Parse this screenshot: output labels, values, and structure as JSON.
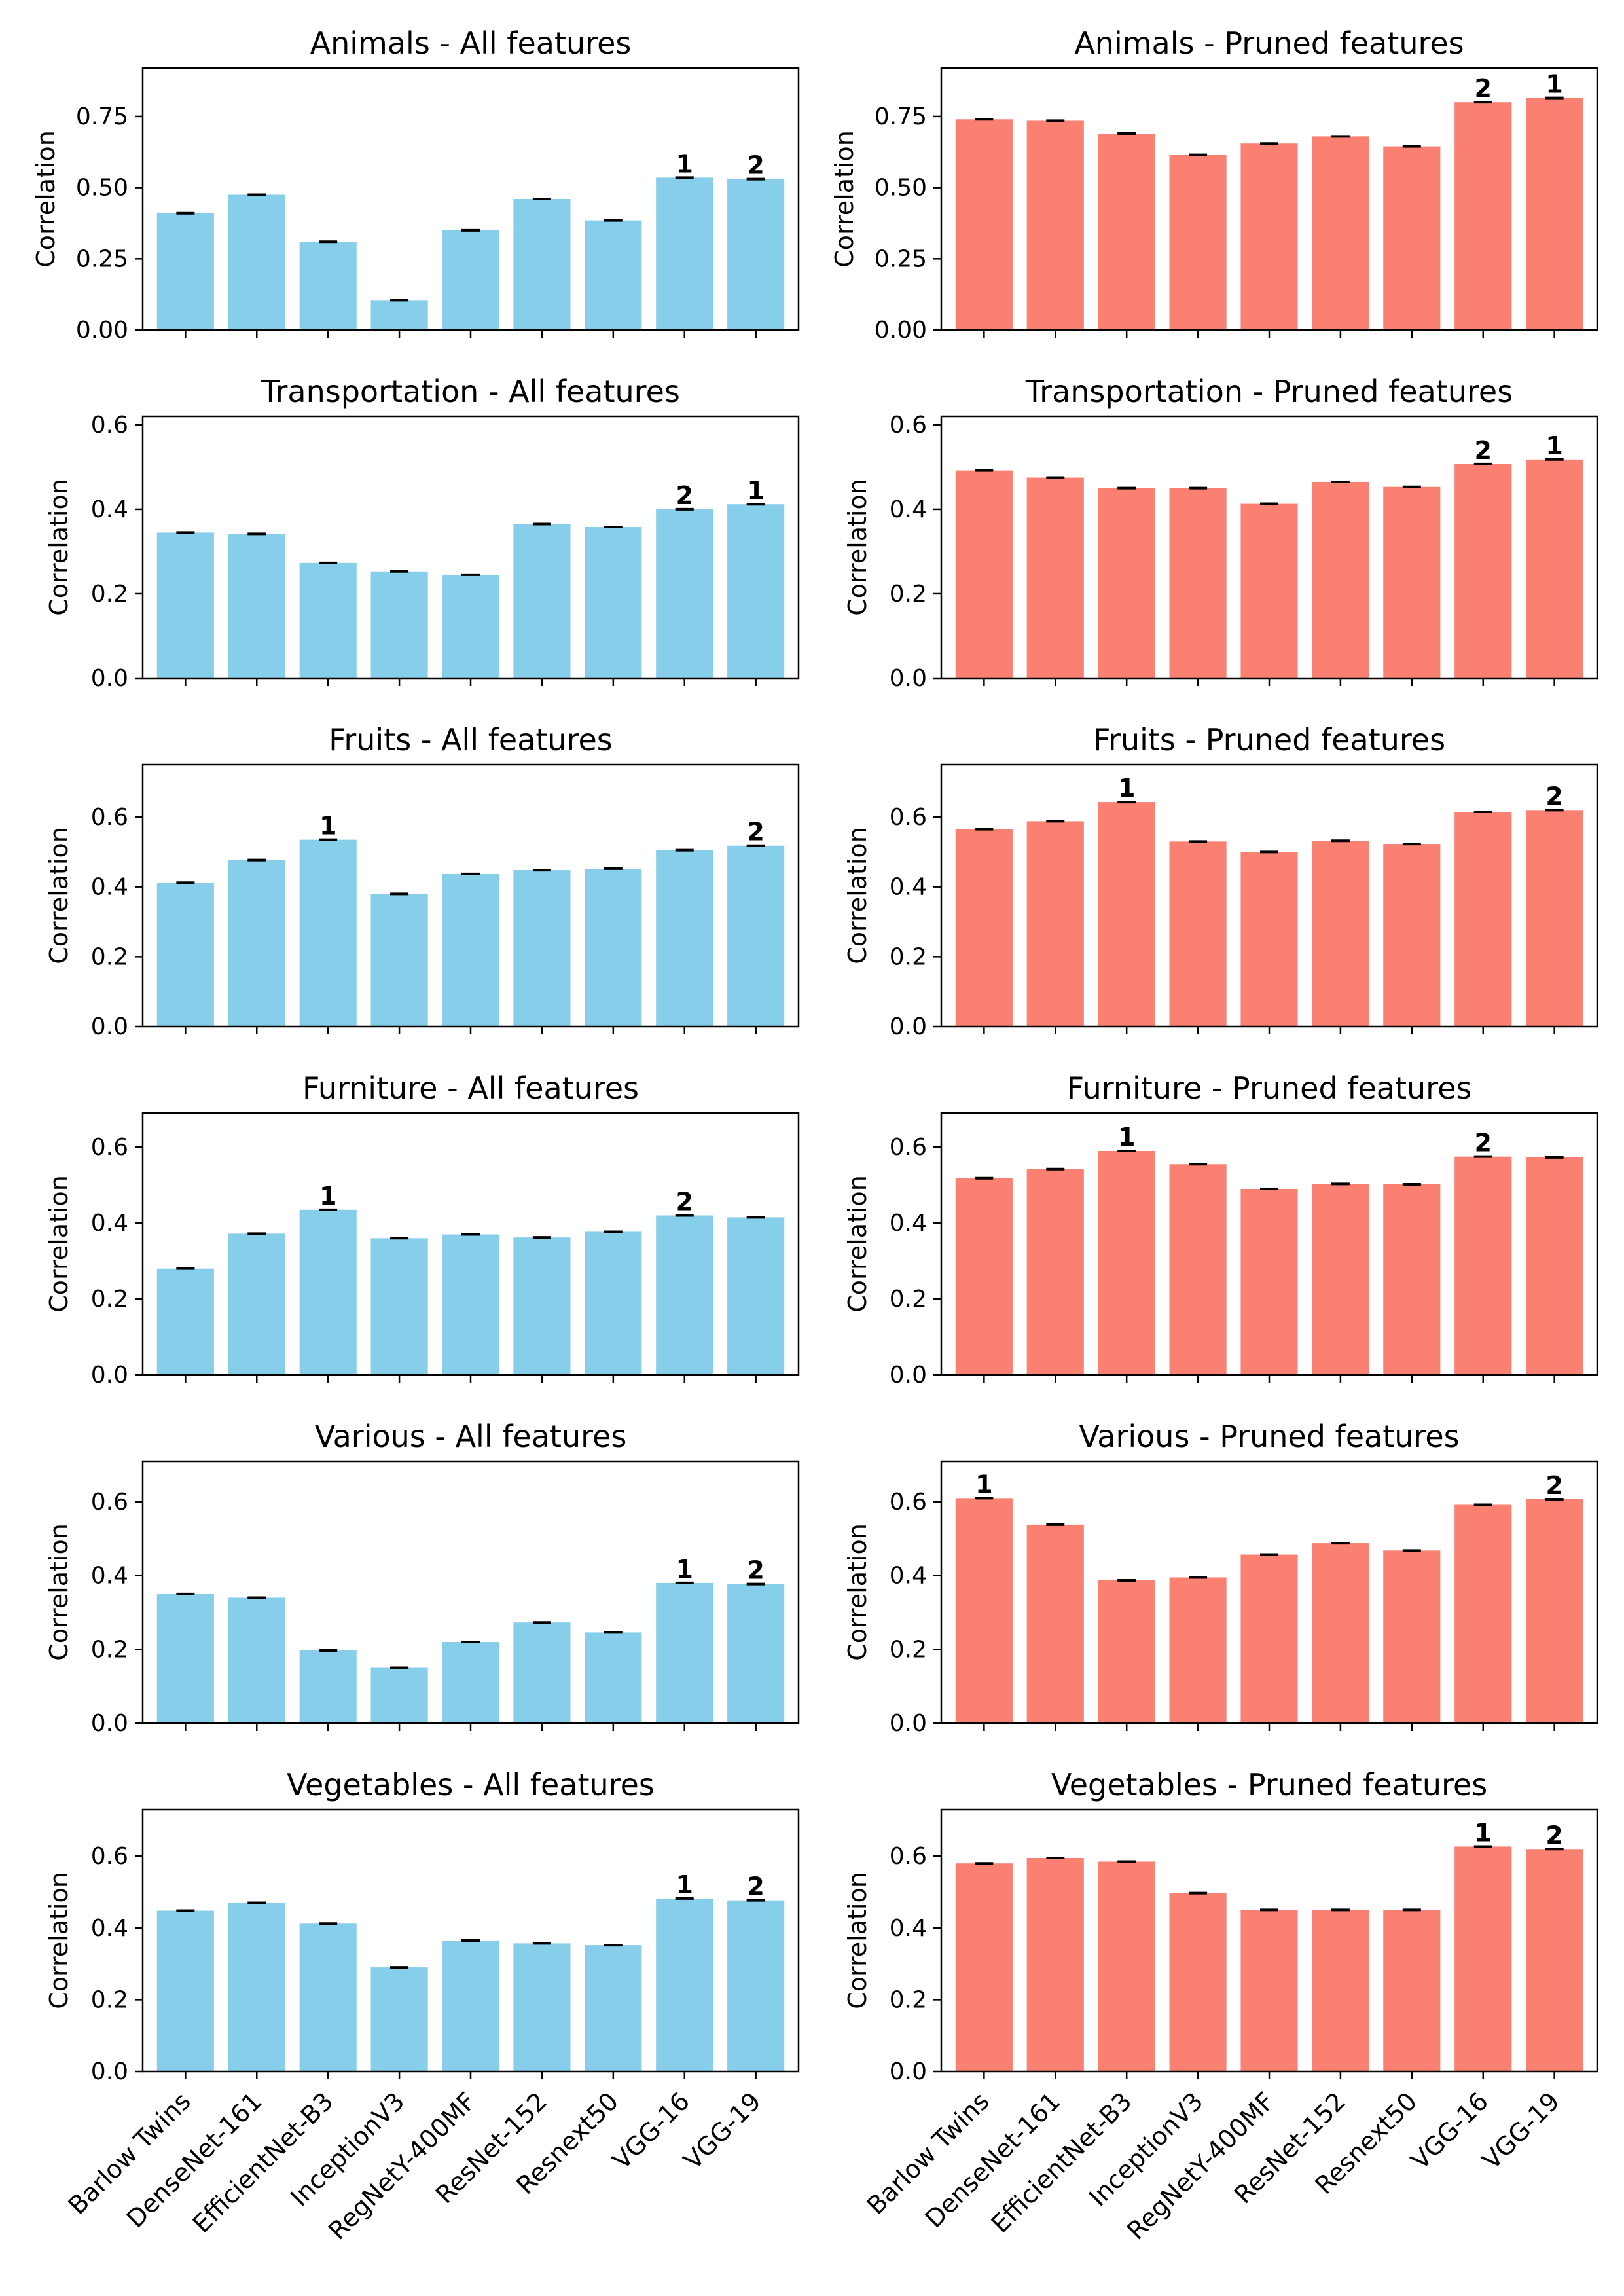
{
  "categories": [
    "Barlow Twins",
    "DenseNet-161",
    "EfficientNet-B3",
    "InceptionV3",
    "RegNetY-400MF",
    "ResNet-152",
    "Resnext50",
    "VGG-16",
    "VGG-19"
  ],
  "ylabel": "Correlation",
  "colors": {
    "all": "#87ceeb",
    "pruned": "#fa8072",
    "errorbar": "#000000"
  },
  "chart_data": [
    {
      "type": "bar",
      "title": "Animals -  All features",
      "variant": "all",
      "ylim": [
        0,
        0.92
      ],
      "yticks": [
        0.0,
        0.25,
        0.5,
        0.75
      ],
      "tick_format": 2,
      "values": [
        0.41,
        0.475,
        0.31,
        0.105,
        0.35,
        0.46,
        0.385,
        0.535,
        0.53
      ],
      "ranks": {
        "7": "1",
        "8": "2"
      }
    },
    {
      "type": "bar",
      "title": "Animals - Pruned features",
      "variant": "pruned",
      "ylim": [
        0,
        0.92
      ],
      "yticks": [
        0.0,
        0.25,
        0.5,
        0.75
      ],
      "tick_format": 2,
      "values": [
        0.74,
        0.735,
        0.69,
        0.615,
        0.655,
        0.68,
        0.645,
        0.8,
        0.815
      ],
      "ranks": {
        "7": "2",
        "8": "1"
      }
    },
    {
      "type": "bar",
      "title": "Transportation -  All features",
      "variant": "all",
      "ylim": [
        0,
        0.62
      ],
      "yticks": [
        0.0,
        0.2,
        0.4,
        0.6
      ],
      "tick_format": 1,
      "values": [
        0.345,
        0.342,
        0.273,
        0.253,
        0.245,
        0.365,
        0.358,
        0.4,
        0.412
      ],
      "ranks": {
        "7": "2",
        "8": "1"
      }
    },
    {
      "type": "bar",
      "title": "Transportation - Pruned features",
      "variant": "pruned",
      "ylim": [
        0,
        0.62
      ],
      "yticks": [
        0.0,
        0.2,
        0.4,
        0.6
      ],
      "tick_format": 1,
      "values": [
        0.492,
        0.475,
        0.45,
        0.45,
        0.413,
        0.465,
        0.453,
        0.507,
        0.518
      ],
      "ranks": {
        "7": "2",
        "8": "1"
      }
    },
    {
      "type": "bar",
      "title": "Fruits -  All features",
      "variant": "all",
      "ylim": [
        0,
        0.75
      ],
      "yticks": [
        0.0,
        0.2,
        0.4,
        0.6
      ],
      "tick_format": 1,
      "values": [
        0.412,
        0.477,
        0.535,
        0.38,
        0.437,
        0.448,
        0.452,
        0.505,
        0.518
      ],
      "ranks": {
        "2": "1",
        "8": "2"
      }
    },
    {
      "type": "bar",
      "title": "Fruits - Pruned features",
      "variant": "pruned",
      "ylim": [
        0,
        0.75
      ],
      "yticks": [
        0.0,
        0.2,
        0.4,
        0.6
      ],
      "tick_format": 1,
      "values": [
        0.565,
        0.588,
        0.643,
        0.53,
        0.5,
        0.532,
        0.523,
        0.615,
        0.62
      ],
      "ranks": {
        "2": "1",
        "8": "2"
      }
    },
    {
      "type": "bar",
      "title": "Furniture -  All features",
      "variant": "all",
      "ylim": [
        0,
        0.69
      ],
      "yticks": [
        0.0,
        0.2,
        0.4,
        0.6
      ],
      "tick_format": 1,
      "values": [
        0.28,
        0.372,
        0.435,
        0.36,
        0.37,
        0.362,
        0.377,
        0.42,
        0.415
      ],
      "ranks": {
        "2": "1",
        "7": "2"
      }
    },
    {
      "type": "bar",
      "title": "Furniture - Pruned features",
      "variant": "pruned",
      "ylim": [
        0,
        0.69
      ],
      "yticks": [
        0.0,
        0.2,
        0.4,
        0.6
      ],
      "tick_format": 1,
      "values": [
        0.518,
        0.542,
        0.59,
        0.555,
        0.49,
        0.503,
        0.502,
        0.575,
        0.573
      ],
      "ranks": {
        "2": "1",
        "7": "2"
      }
    },
    {
      "type": "bar",
      "title": "Various -  All features",
      "variant": "all",
      "ylim": [
        0,
        0.71
      ],
      "yticks": [
        0.0,
        0.2,
        0.4,
        0.6
      ],
      "tick_format": 1,
      "values": [
        0.35,
        0.34,
        0.197,
        0.15,
        0.22,
        0.273,
        0.246,
        0.38,
        0.377
      ],
      "ranks": {
        "7": "1",
        "8": "2"
      }
    },
    {
      "type": "bar",
      "title": "Various - Pruned features",
      "variant": "pruned",
      "ylim": [
        0,
        0.71
      ],
      "yticks": [
        0.0,
        0.2,
        0.4,
        0.6
      ],
      "tick_format": 1,
      "values": [
        0.61,
        0.538,
        0.387,
        0.395,
        0.457,
        0.488,
        0.468,
        0.592,
        0.607
      ],
      "ranks": {
        "0": "1",
        "8": "2"
      }
    },
    {
      "type": "bar",
      "title": "Vegetables -  All features",
      "variant": "all",
      "ylim": [
        0,
        0.73
      ],
      "yticks": [
        0.0,
        0.2,
        0.4,
        0.6
      ],
      "tick_format": 1,
      "values": [
        0.448,
        0.47,
        0.412,
        0.29,
        0.365,
        0.357,
        0.352,
        0.482,
        0.477
      ],
      "ranks": {
        "7": "1",
        "8": "2"
      }
    },
    {
      "type": "bar",
      "title": "Vegetables - Pruned features",
      "variant": "pruned",
      "ylim": [
        0,
        0.73
      ],
      "yticks": [
        0.0,
        0.2,
        0.4,
        0.6
      ],
      "tick_format": 1,
      "values": [
        0.58,
        0.595,
        0.585,
        0.497,
        0.45,
        0.45,
        0.45,
        0.627,
        0.62
      ],
      "ranks": {
        "7": "1",
        "8": "2"
      }
    }
  ]
}
